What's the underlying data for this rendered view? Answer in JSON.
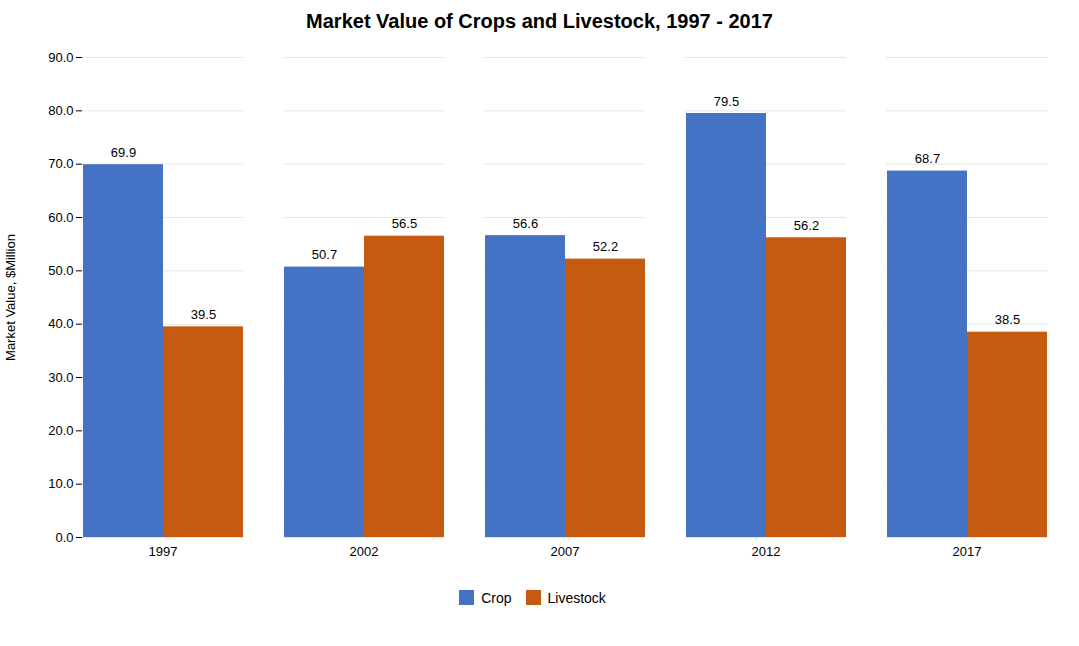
{
  "chart_data": {
    "type": "bar",
    "title": "Market Value of Crops and Livestock, 1997 - 2017",
    "ylabel": "Market Value, $Million",
    "categories": [
      "1997",
      "2002",
      "2007",
      "2012",
      "2017"
    ],
    "series": [
      {
        "name": "Crop",
        "color": "#4472C4",
        "values": [
          69.9,
          50.7,
          56.6,
          79.5,
          68.7
        ]
      },
      {
        "name": "Livestock",
        "color": "#C55A11",
        "values": [
          39.5,
          56.5,
          52.2,
          56.2,
          38.5
        ]
      }
    ],
    "ylim": [
      0,
      90
    ],
    "yticks": [
      {
        "value": 0,
        "label": "0.0"
      },
      {
        "value": 10,
        "label": "10.0"
      },
      {
        "value": 20,
        "label": "20.0"
      },
      {
        "value": 30,
        "label": "30.0"
      },
      {
        "value": 40,
        "label": "40.0"
      },
      {
        "value": 50,
        "label": "50.0"
      },
      {
        "value": 60,
        "label": "60.0"
      },
      {
        "value": 70,
        "label": "70.0"
      },
      {
        "value": 80,
        "label": "80.0"
      },
      {
        "value": 90,
        "label": "90.0"
      }
    ],
    "grid": true,
    "legend": "bottom",
    "data_labels": true
  }
}
